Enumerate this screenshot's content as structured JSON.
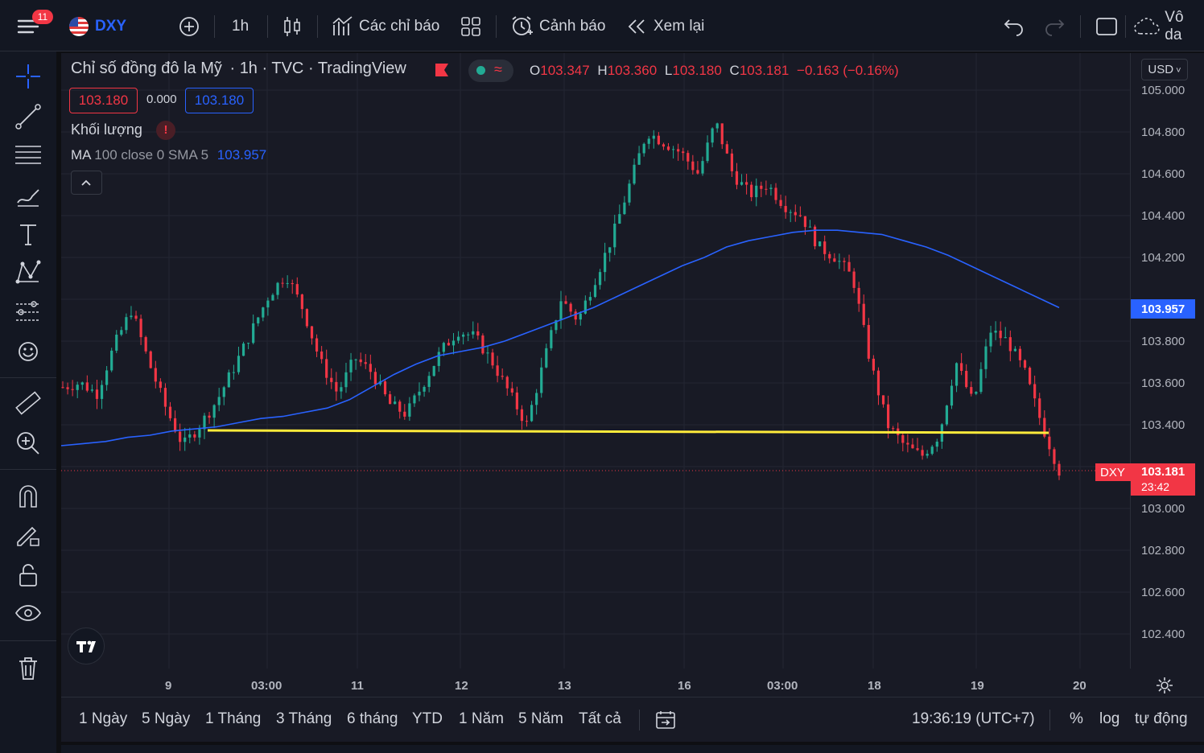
{
  "topbar": {
    "notification_count": "11",
    "symbol": "DXY",
    "interval": "1h",
    "indicators_label": "Các chỉ báo",
    "alerts_label": "Cảnh báo",
    "replay_label": "Xem lại",
    "untitled_label": "Vô da"
  },
  "legend": {
    "title": "Chỉ số đồng đô la Mỹ",
    "interval": "1h",
    "exchange": "TVC",
    "source": "TradingView",
    "o_label": "O",
    "o_value": "103.347",
    "h_label": "H",
    "h_value": "103.360",
    "l_label": "L",
    "l_value": "103.180",
    "c_label": "C",
    "c_value": "103.181",
    "change": "−0.163 (−0.16%)",
    "sell_price": "103.180",
    "spread": "0.000",
    "buy_price": "103.180",
    "volume_label": "Khối lượng",
    "ma_label": "MA",
    "ma_params": "100 close 0 SMA 5",
    "ma_value": "103.957"
  },
  "axis": {
    "currency": "USD",
    "y_ticks": [
      "105.000",
      "104.800",
      "104.600",
      "104.400",
      "104.200",
      "103.800",
      "103.600",
      "103.400",
      "103.000",
      "102.800",
      "102.600",
      "102.400"
    ],
    "x_ticks": [
      "9",
      "03:00",
      "11",
      "12",
      "13",
      "16",
      "03:00",
      "18",
      "19",
      "20"
    ],
    "ma_tag": "103.957",
    "last_symbol": "DXY",
    "last_price": "103.181",
    "countdown": "23:42"
  },
  "bottombar": {
    "ranges": [
      "1 Ngày",
      "5 Ngày",
      "1 Tháng",
      "3 Tháng",
      "6 tháng",
      "YTD",
      "1 Năm",
      "5 Năm",
      "Tất cả"
    ],
    "clock": "19:36:19 (UTC+7)",
    "percent": "%",
    "log": "log",
    "auto": "tự động"
  },
  "colors": {
    "up": "#22ab94",
    "down": "#f23645",
    "ma_line": "#2962ff",
    "hline": "#ffeb3b",
    "bg": "#181a25"
  },
  "chart_data": {
    "type": "candlestick",
    "ylim": [
      102.3,
      105.1
    ],
    "ma_line": [
      103.3,
      103.31,
      103.32,
      103.34,
      103.35,
      103.37,
      103.38,
      103.39,
      103.41,
      103.43,
      103.44,
      103.46,
      103.48,
      103.52,
      103.58,
      103.64,
      103.69,
      103.73,
      103.75,
      103.77,
      103.8,
      103.84,
      103.88,
      103.92,
      103.96,
      104.01,
      104.06,
      104.11,
      104.16,
      104.2,
      104.25,
      104.28,
      104.3,
      104.32,
      104.33,
      104.33,
      104.32,
      104.31,
      104.28,
      104.25,
      104.21,
      104.16,
      104.11,
      104.06,
      104.01,
      103.96
    ],
    "close_series": [
      103.58,
      103.6,
      103.55,
      103.78,
      103.95,
      103.7,
      103.48,
      103.3,
      103.4,
      103.52,
      103.68,
      103.85,
      104.02,
      104.12,
      103.95,
      103.7,
      103.55,
      103.72,
      103.65,
      103.5,
      103.45,
      103.6,
      103.75,
      103.85,
      103.82,
      103.7,
      103.55,
      103.4,
      103.7,
      104.0,
      103.9,
      104.1,
      104.3,
      104.55,
      104.8,
      104.75,
      104.7,
      104.6,
      104.85,
      104.6,
      104.5,
      104.55,
      104.45,
      104.4,
      104.25,
      104.2,
      104.1,
      103.7,
      103.4,
      103.3,
      103.25,
      103.35,
      103.7,
      103.5,
      103.85,
      103.8,
      103.65,
      103.4,
      103.18
    ]
  }
}
